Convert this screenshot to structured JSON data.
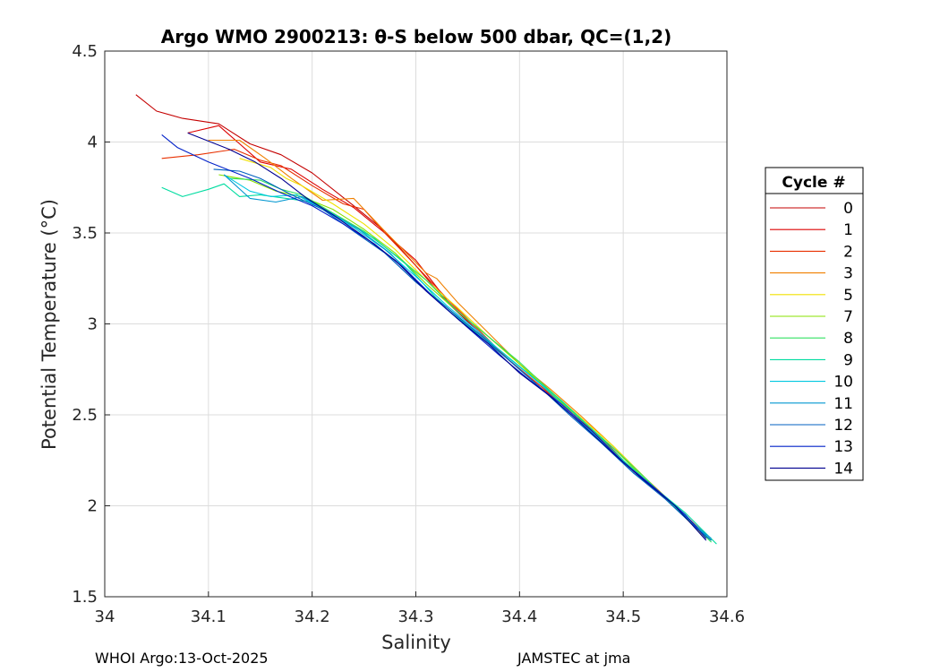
{
  "chart_data": {
    "type": "line",
    "title": "Argo WMO 2900213: θ-S below 500 dbar,  QC=(1,2)",
    "xlabel": "Salinity",
    "ylabel": "Potential Temperature (°C)",
    "xlim": [
      34.0,
      34.6
    ],
    "ylim": [
      1.5,
      4.5
    ],
    "xticks": [
      "34",
      "34.1",
      "34.2",
      "34.3",
      "34.4",
      "34.5",
      "34.6"
    ],
    "yticks": [
      "1.5",
      "2",
      "2.5",
      "3",
      "3.5",
      "4",
      "4.5"
    ],
    "grid": true,
    "legend": {
      "title": "Cycle #",
      "position": "right"
    },
    "series": [
      {
        "name": "0",
        "color": "#c40000",
        "points": [
          [
            34.03,
            4.26
          ],
          [
            34.05,
            4.17
          ],
          [
            34.075,
            4.13
          ],
          [
            34.11,
            4.1
          ],
          [
            34.14,
            3.99
          ],
          [
            34.17,
            3.93
          ],
          [
            34.2,
            3.83
          ],
          [
            34.24,
            3.65
          ],
          [
            34.27,
            3.51
          ],
          [
            34.3,
            3.32
          ],
          [
            34.33,
            3.12
          ],
          [
            34.36,
            2.96
          ],
          [
            34.39,
            2.8
          ],
          [
            34.42,
            2.66
          ],
          [
            34.45,
            2.52
          ],
          [
            34.48,
            2.37
          ],
          [
            34.51,
            2.19
          ],
          [
            34.55,
            2.0
          ],
          [
            34.58,
            1.83
          ]
        ]
      },
      {
        "name": "1",
        "color": "#dd0000",
        "points": [
          [
            34.08,
            4.05
          ],
          [
            34.11,
            4.09
          ],
          [
            34.13,
            3.99
          ],
          [
            34.15,
            3.89
          ],
          [
            34.18,
            3.85
          ],
          [
            34.21,
            3.74
          ],
          [
            34.24,
            3.64
          ],
          [
            34.27,
            3.5
          ],
          [
            34.3,
            3.35
          ],
          [
            34.33,
            3.13
          ],
          [
            34.36,
            2.96
          ],
          [
            34.39,
            2.8
          ],
          [
            34.42,
            2.65
          ],
          [
            34.45,
            2.52
          ],
          [
            34.48,
            2.36
          ],
          [
            34.51,
            2.19
          ],
          [
            34.55,
            2.0
          ],
          [
            34.58,
            1.84
          ]
        ]
      },
      {
        "name": "2",
        "color": "#e83000",
        "points": [
          [
            34.055,
            3.91
          ],
          [
            34.09,
            3.93
          ],
          [
            34.125,
            3.96
          ],
          [
            34.15,
            3.9
          ],
          [
            34.17,
            3.87
          ],
          [
            34.2,
            3.76
          ],
          [
            34.23,
            3.66
          ],
          [
            34.25,
            3.63
          ],
          [
            34.27,
            3.5
          ],
          [
            34.295,
            3.35
          ],
          [
            34.31,
            3.26
          ],
          [
            34.33,
            3.14
          ],
          [
            34.36,
            2.97
          ],
          [
            34.39,
            2.8
          ],
          [
            34.42,
            2.66
          ],
          [
            34.45,
            2.51
          ],
          [
            34.48,
            2.36
          ],
          [
            34.51,
            2.19
          ],
          [
            34.55,
            2.0
          ],
          [
            34.58,
            1.83
          ]
        ]
      },
      {
        "name": "3",
        "color": "#f08000",
        "points": [
          [
            34.1,
            4.01
          ],
          [
            34.13,
            4.01
          ],
          [
            34.155,
            3.91
          ],
          [
            34.18,
            3.8
          ],
          [
            34.21,
            3.68
          ],
          [
            34.24,
            3.69
          ],
          [
            34.27,
            3.51
          ],
          [
            34.31,
            3.28
          ],
          [
            34.32,
            3.25
          ],
          [
            34.34,
            3.12
          ],
          [
            34.37,
            2.95
          ],
          [
            34.4,
            2.78
          ],
          [
            34.43,
            2.64
          ],
          [
            34.46,
            2.49
          ],
          [
            34.49,
            2.33
          ],
          [
            34.52,
            2.16
          ],
          [
            34.55,
            2.0
          ],
          [
            34.58,
            1.83
          ]
        ]
      },
      {
        "name": "5",
        "color": "#f0e000",
        "points": [
          [
            34.13,
            3.91
          ],
          [
            34.16,
            3.86
          ],
          [
            34.175,
            3.8
          ],
          [
            34.19,
            3.76
          ],
          [
            34.22,
            3.66
          ],
          [
            34.25,
            3.55
          ],
          [
            34.28,
            3.41
          ],
          [
            34.31,
            3.24
          ],
          [
            34.34,
            3.09
          ],
          [
            34.37,
            2.93
          ],
          [
            34.4,
            2.78
          ],
          [
            34.43,
            2.63
          ],
          [
            34.46,
            2.48
          ],
          [
            34.49,
            2.33
          ],
          [
            34.52,
            2.16
          ],
          [
            34.55,
            1.99
          ],
          [
            34.58,
            1.82
          ]
        ]
      },
      {
        "name": "7",
        "color": "#88e000",
        "points": [
          [
            34.11,
            3.82
          ],
          [
            34.14,
            3.79
          ],
          [
            34.165,
            3.73
          ],
          [
            34.19,
            3.7
          ],
          [
            34.22,
            3.63
          ],
          [
            34.25,
            3.52
          ],
          [
            34.28,
            3.39
          ],
          [
            34.31,
            3.22
          ],
          [
            34.34,
            3.07
          ],
          [
            34.37,
            2.93
          ],
          [
            34.4,
            2.78
          ],
          [
            34.43,
            2.62
          ],
          [
            34.46,
            2.47
          ],
          [
            34.49,
            2.32
          ],
          [
            34.52,
            2.15
          ],
          [
            34.55,
            1.99
          ],
          [
            34.58,
            1.83
          ]
        ]
      },
      {
        "name": "8",
        "color": "#30e060",
        "points": [
          [
            34.12,
            3.8
          ],
          [
            34.15,
            3.79
          ],
          [
            34.17,
            3.74
          ],
          [
            34.19,
            3.71
          ],
          [
            34.22,
            3.61
          ],
          [
            34.25,
            3.51
          ],
          [
            34.28,
            3.38
          ],
          [
            34.31,
            3.24
          ],
          [
            34.34,
            3.07
          ],
          [
            34.37,
            2.93
          ],
          [
            34.4,
            2.79
          ],
          [
            34.43,
            2.63
          ],
          [
            34.46,
            2.47
          ],
          [
            34.49,
            2.32
          ],
          [
            34.52,
            2.16
          ],
          [
            34.55,
            1.99
          ],
          [
            34.585,
            1.8
          ]
        ]
      },
      {
        "name": "9",
        "color": "#00dca0",
        "points": [
          [
            34.055,
            3.75
          ],
          [
            34.075,
            3.7
          ],
          [
            34.1,
            3.74
          ],
          [
            34.115,
            3.77
          ],
          [
            34.13,
            3.7
          ],
          [
            34.15,
            3.71
          ],
          [
            34.175,
            3.69
          ],
          [
            34.2,
            3.67
          ],
          [
            34.23,
            3.57
          ],
          [
            34.26,
            3.47
          ],
          [
            34.29,
            3.33
          ],
          [
            34.32,
            3.14
          ],
          [
            34.35,
            2.99
          ],
          [
            34.38,
            2.86
          ],
          [
            34.41,
            2.72
          ],
          [
            34.44,
            2.58
          ],
          [
            34.47,
            2.42
          ],
          [
            34.5,
            2.25
          ],
          [
            34.53,
            2.1
          ],
          [
            34.56,
            1.96
          ],
          [
            34.59,
            1.79
          ]
        ]
      },
      {
        "name": "10",
        "color": "#00c8e0",
        "points": [
          [
            34.115,
            3.82
          ],
          [
            34.14,
            3.73
          ],
          [
            34.16,
            3.7
          ],
          [
            34.185,
            3.71
          ],
          [
            34.21,
            3.63
          ],
          [
            34.24,
            3.53
          ],
          [
            34.27,
            3.41
          ],
          [
            34.3,
            3.26
          ],
          [
            34.33,
            3.1
          ],
          [
            34.36,
            2.96
          ],
          [
            34.39,
            2.81
          ],
          [
            34.42,
            2.67
          ],
          [
            34.45,
            2.51
          ],
          [
            34.48,
            2.35
          ],
          [
            34.51,
            2.19
          ],
          [
            34.54,
            2.05
          ],
          [
            34.57,
            1.89
          ],
          [
            34.585,
            1.81
          ]
        ]
      },
      {
        "name": "11",
        "color": "#0096d0",
        "points": [
          [
            34.115,
            3.82
          ],
          [
            34.14,
            3.69
          ],
          [
            34.165,
            3.67
          ],
          [
            34.19,
            3.7
          ],
          [
            34.215,
            3.62
          ],
          [
            34.245,
            3.52
          ],
          [
            34.275,
            3.39
          ],
          [
            34.3,
            3.24
          ],
          [
            34.33,
            3.08
          ],
          [
            34.36,
            2.94
          ],
          [
            34.39,
            2.8
          ],
          [
            34.42,
            2.65
          ],
          [
            34.45,
            2.5
          ],
          [
            34.48,
            2.34
          ],
          [
            34.51,
            2.18
          ],
          [
            34.54,
            2.05
          ],
          [
            34.57,
            1.89
          ],
          [
            34.585,
            1.82
          ]
        ]
      },
      {
        "name": "12",
        "color": "#0060c0",
        "points": [
          [
            34.105,
            3.85
          ],
          [
            34.13,
            3.84
          ],
          [
            34.15,
            3.8
          ],
          [
            34.18,
            3.71
          ],
          [
            34.21,
            3.63
          ],
          [
            34.24,
            3.51
          ],
          [
            34.27,
            3.39
          ],
          [
            34.3,
            3.23
          ],
          [
            34.33,
            3.09
          ],
          [
            34.36,
            2.95
          ],
          [
            34.39,
            2.8
          ],
          [
            34.42,
            2.65
          ],
          [
            34.45,
            2.49
          ],
          [
            34.48,
            2.34
          ],
          [
            34.51,
            2.18
          ],
          [
            34.54,
            2.04
          ],
          [
            34.57,
            1.88
          ],
          [
            34.585,
            1.81
          ]
        ]
      },
      {
        "name": "13",
        "color": "#0020c8",
        "points": [
          [
            34.055,
            4.04
          ],
          [
            34.07,
            3.97
          ],
          [
            34.1,
            3.89
          ],
          [
            34.14,
            3.8
          ],
          [
            34.17,
            3.72
          ],
          [
            34.2,
            3.65
          ],
          [
            34.23,
            3.55
          ],
          [
            34.26,
            3.44
          ],
          [
            34.29,
            3.3
          ],
          [
            34.32,
            3.13
          ],
          [
            34.35,
            2.98
          ],
          [
            34.38,
            2.83
          ],
          [
            34.41,
            2.69
          ],
          [
            34.44,
            2.56
          ],
          [
            34.47,
            2.41
          ],
          [
            34.5,
            2.24
          ],
          [
            34.53,
            2.1
          ],
          [
            34.56,
            1.95
          ],
          [
            34.58,
            1.82
          ]
        ]
      },
      {
        "name": "14",
        "color": "#000090",
        "points": [
          [
            34.08,
            4.05
          ],
          [
            34.12,
            3.96
          ],
          [
            34.145,
            3.89
          ],
          [
            34.17,
            3.8
          ],
          [
            34.195,
            3.69
          ],
          [
            34.22,
            3.6
          ],
          [
            34.25,
            3.48
          ],
          [
            34.28,
            3.35
          ],
          [
            34.31,
            3.18
          ],
          [
            34.34,
            3.03
          ],
          [
            34.37,
            2.89
          ],
          [
            34.4,
            2.73
          ],
          [
            34.43,
            2.6
          ],
          [
            34.46,
            2.45
          ],
          [
            34.49,
            2.29
          ],
          [
            34.52,
            2.14
          ],
          [
            34.55,
            2.0
          ],
          [
            34.58,
            1.81
          ]
        ]
      }
    ]
  },
  "footer": {
    "left": "WHOI Argo:13-Oct-2025",
    "right": "JAMSTEC at jma"
  }
}
